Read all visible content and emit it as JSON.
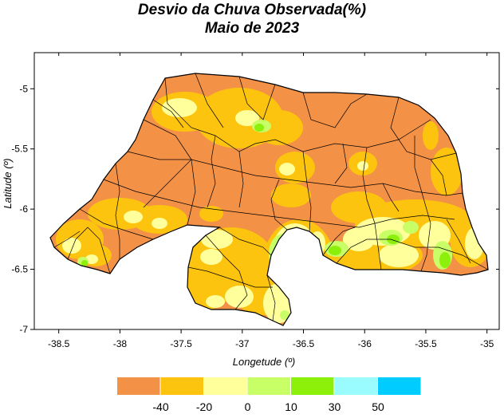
{
  "title": "Desvio da Chuva Observada(%)",
  "subtitle": "Maio de 2023",
  "axes": {
    "xlabel": "Longetude (º)",
    "ylabel": "Latitude (º)",
    "xticks": [
      "-38.5",
      "-38",
      "-37.5",
      "-37",
      "-36.5",
      "-36",
      "-35.5",
      "-35"
    ],
    "yticks": [
      "-5",
      "-5.5",
      "-6",
      "-6.5",
      "-7"
    ],
    "xlim": [
      -38.7,
      -34.9
    ],
    "ylim": [
      -7.0,
      -4.7
    ]
  },
  "legend": {
    "labels": [
      "-40",
      "-20",
      "0",
      "10",
      "30",
      "50"
    ],
    "colors": [
      "#f39147",
      "#fcc40f",
      "#ffff9b",
      "#c8ff66",
      "#8cf00b",
      "#9bfcff",
      "#00ccff"
    ]
  },
  "colors": {
    "dry": "#f39147",
    "moderately_dry": "#fcc40f",
    "slightly_dry": "#ffff9b",
    "slightly_wet": "#c8ff66",
    "wet": "#8cf00b",
    "very_wet": "#9bfcff",
    "extreme_wet": "#00ccff"
  }
}
